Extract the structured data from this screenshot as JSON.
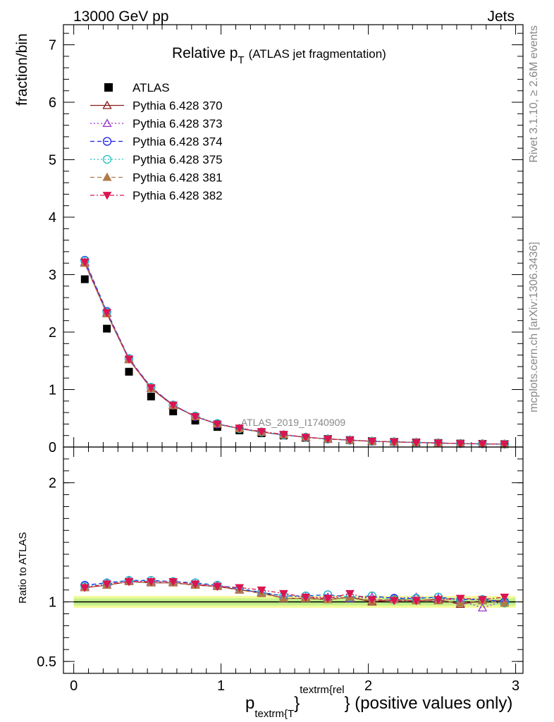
{
  "header": {
    "left": "13000 GeV pp",
    "right": "Jets",
    "side_top": "Rivet 3.1.10, ≥ 2.6M events",
    "side_bottom": "mcplots.cern.ch [arXiv:1306.3436]"
  },
  "chart_data": [
    {
      "panel": "main",
      "type": "line",
      "title_main": "Relative p",
      "title_sub": "T",
      "title_note": "(ATLAS jet fragmentation)",
      "ylabel": "fraction/bin",
      "watermark": "ATLAS_2019_I1740909",
      "xlim": [
        -0.07,
        3.05
      ],
      "ylim": [
        0,
        7.35
      ],
      "yticks": [
        0,
        1,
        2,
        3,
        4,
        5,
        6,
        7
      ],
      "x": [
        0.075,
        0.225,
        0.375,
        0.525,
        0.675,
        0.825,
        0.975,
        1.125,
        1.275,
        1.425,
        1.575,
        1.725,
        1.875,
        2.025,
        2.175,
        2.325,
        2.475,
        2.625,
        2.775,
        2.925
      ],
      "data": {
        "name": "ATLAS",
        "values": [
          2.92,
          2.06,
          1.31,
          0.88,
          0.62,
          0.46,
          0.35,
          0.29,
          0.24,
          0.2,
          0.16,
          0.14,
          0.12,
          0.1,
          0.09,
          0.08,
          0.07,
          0.06,
          0.055,
          0.05
        ]
      },
      "series": [
        {
          "name": "Pythia 6.428 370",
          "color": "#8b1a1a",
          "dash": "",
          "marker": "triangle-open",
          "values": [
            3.2,
            2.32,
            1.52,
            1.02,
            0.72,
            0.53,
            0.4,
            0.32,
            0.26,
            0.21,
            0.17,
            0.14,
            0.12,
            0.1,
            0.09,
            0.08,
            0.07,
            0.06,
            0.055,
            0.05
          ]
        },
        {
          "name": "Pythia 6.428 373",
          "color": "#9932cc",
          "dash": "2,3",
          "marker": "triangle-open",
          "values": [
            3.22,
            2.34,
            1.53,
            1.03,
            0.73,
            0.53,
            0.4,
            0.32,
            0.26,
            0.21,
            0.17,
            0.14,
            0.12,
            0.1,
            0.09,
            0.08,
            0.07,
            0.06,
            0.05,
            0.05
          ]
        },
        {
          "name": "Pythia 6.428 374",
          "color": "#1a1aee",
          "dash": "6,4",
          "marker": "circle-open",
          "values": [
            3.25,
            2.36,
            1.54,
            1.04,
            0.73,
            0.53,
            0.4,
            0.32,
            0.26,
            0.21,
            0.17,
            0.14,
            0.12,
            0.1,
            0.09,
            0.08,
            0.07,
            0.06,
            0.055,
            0.05
          ]
        },
        {
          "name": "Pythia 6.428 375",
          "color": "#20c0c0",
          "dash": "2,3",
          "marker": "circle-open",
          "values": [
            3.24,
            2.35,
            1.54,
            1.04,
            0.73,
            0.54,
            0.41,
            0.32,
            0.26,
            0.21,
            0.17,
            0.14,
            0.12,
            0.1,
            0.09,
            0.08,
            0.07,
            0.06,
            0.055,
            0.05
          ]
        },
        {
          "name": "Pythia 6.428 381",
          "color": "#b07a4a",
          "dash": "6,4",
          "marker": "triangle-filled",
          "values": [
            3.2,
            2.32,
            1.52,
            1.02,
            0.72,
            0.53,
            0.4,
            0.32,
            0.26,
            0.21,
            0.17,
            0.14,
            0.12,
            0.1,
            0.09,
            0.08,
            0.07,
            0.06,
            0.055,
            0.05
          ]
        },
        {
          "name": "Pythia 6.428 382",
          "color": "#dc1450",
          "dash": "6,3,2,3",
          "marker": "triangle-down-filled",
          "values": [
            3.22,
            2.34,
            1.53,
            1.03,
            0.73,
            0.53,
            0.4,
            0.33,
            0.27,
            0.22,
            0.17,
            0.14,
            0.12,
            0.1,
            0.09,
            0.08,
            0.07,
            0.06,
            0.055,
            0.05
          ]
        }
      ]
    },
    {
      "panel": "ratio",
      "type": "line",
      "ylabel": "Ratio to ATLAS",
      "xlabel_main": "p",
      "xlabel_sub": "textrm{T",
      "xlabel_sup": "textrm{rel",
      "xlabel_brace": "}",
      "xlabel_tail": "} (positive values only)",
      "xlim": [
        -0.07,
        3.05
      ],
      "ylim": [
        0.4,
        2.3
      ],
      "yticks": [
        0.5,
        1,
        2
      ],
      "xticks": [
        0,
        1,
        2,
        3
      ],
      "band": [
        0.97,
        1.03
      ],
      "x": [
        0.075,
        0.225,
        0.375,
        0.525,
        0.675,
        0.825,
        0.975,
        1.125,
        1.275,
        1.425,
        1.575,
        1.725,
        1.875,
        2.025,
        2.175,
        2.325,
        2.475,
        2.625,
        2.775,
        2.925
      ],
      "series": [
        {
          "name": "Pythia 6.428 370",
          "color": "#8b1a1a",
          "dash": "",
          "marker": "triangle-open",
          "values": [
            1.12,
            1.14,
            1.17,
            1.16,
            1.16,
            1.14,
            1.13,
            1.1,
            1.08,
            1.03,
            1.03,
            1.02,
            1.04,
            1.0,
            1.02,
            1.01,
            1.02,
            0.98,
            1.01,
            1.01
          ]
        },
        {
          "name": "Pythia 6.428 373",
          "color": "#9932cc",
          "dash": "2,3",
          "marker": "triangle-open",
          "values": [
            1.13,
            1.16,
            1.18,
            1.17,
            1.17,
            1.15,
            1.14,
            1.1,
            1.08,
            1.05,
            1.04,
            1.04,
            1.03,
            1.04,
            1.03,
            1.04,
            1.03,
            1.01,
            0.95,
            1.01
          ]
        },
        {
          "name": "Pythia 6.428 374",
          "color": "#1a1aee",
          "dash": "6,4",
          "marker": "circle-open",
          "values": [
            1.14,
            1.16,
            1.18,
            1.18,
            1.17,
            1.16,
            1.14,
            1.11,
            1.08,
            1.05,
            1.05,
            1.06,
            1.04,
            1.05,
            1.03,
            1.03,
            1.04,
            1.02,
            1.02,
            1.0
          ]
        },
        {
          "name": "Pythia 6.428 375",
          "color": "#20c0c0",
          "dash": "2,3",
          "marker": "circle-open",
          "values": [
            1.13,
            1.16,
            1.18,
            1.18,
            1.17,
            1.16,
            1.14,
            1.11,
            1.08,
            1.05,
            1.05,
            1.06,
            1.04,
            1.05,
            1.02,
            1.03,
            1.04,
            1.02,
            1.02,
            0.99
          ]
        },
        {
          "name": "Pythia 6.428 381",
          "color": "#b07a4a",
          "dash": "6,4",
          "marker": "triangle-filled",
          "values": [
            1.12,
            1.14,
            1.17,
            1.16,
            1.16,
            1.14,
            1.13,
            1.1,
            1.07,
            1.03,
            1.03,
            1.02,
            1.04,
            1.01,
            1.02,
            1.01,
            1.01,
            0.99,
            1.01,
            0.99
          ]
        },
        {
          "name": "Pythia 6.428 382",
          "color": "#dc1450",
          "dash": "6,3,2,3",
          "marker": "triangle-down-filled",
          "values": [
            1.12,
            1.15,
            1.17,
            1.17,
            1.17,
            1.15,
            1.13,
            1.12,
            1.1,
            1.07,
            1.04,
            1.03,
            1.07,
            1.02,
            1.01,
            1.01,
            1.02,
            1.03,
            1.02,
            1.04
          ]
        }
      ]
    }
  ]
}
